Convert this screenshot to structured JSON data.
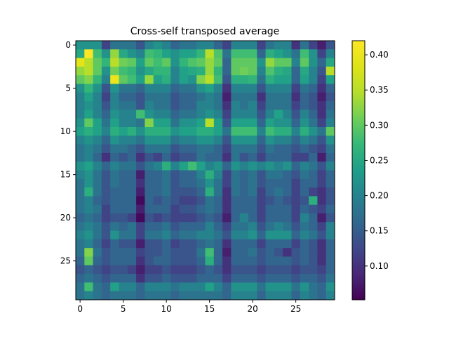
{
  "chart_data": {
    "type": "heatmap",
    "title": "Cross-self transposed average",
    "xlabel": "",
    "ylabel": "",
    "rows": 30,
    "cols": 30,
    "x_ticks": [
      0,
      5,
      10,
      15,
      20,
      25
    ],
    "y_ticks": [
      0,
      5,
      10,
      15,
      20,
      25
    ],
    "colormap": "viridis",
    "colorbar": {
      "min": 0.052,
      "max": 0.42,
      "ticks": [
        "0.10",
        "0.15",
        "0.20",
        "0.25",
        "0.30",
        "0.35",
        "0.40"
      ]
    },
    "values": [
      [
        0.22,
        0.22,
        0.22,
        0.12,
        0.18,
        0.18,
        0.18,
        0.14,
        0.2,
        0.22,
        0.2,
        0.16,
        0.18,
        0.18,
        0.2,
        0.2,
        0.16,
        0.12,
        0.2,
        0.2,
        0.2,
        0.12,
        0.18,
        0.2,
        0.2,
        0.1,
        0.18,
        0.12,
        0.08,
        0.14
      ],
      [
        0.25,
        0.42,
        0.28,
        0.22,
        0.33,
        0.25,
        0.22,
        0.2,
        0.28,
        0.27,
        0.24,
        0.22,
        0.24,
        0.24,
        0.27,
        0.35,
        0.29,
        0.18,
        0.28,
        0.28,
        0.28,
        0.16,
        0.26,
        0.24,
        0.22,
        0.18,
        0.28,
        0.22,
        0.12,
        0.2
      ],
      [
        0.39,
        0.35,
        0.3,
        0.27,
        0.35,
        0.31,
        0.3,
        0.24,
        0.3,
        0.28,
        0.3,
        0.22,
        0.27,
        0.29,
        0.3,
        0.33,
        0.3,
        0.16,
        0.3,
        0.3,
        0.3,
        0.22,
        0.33,
        0.3,
        0.3,
        0.2,
        0.3,
        0.22,
        0.16,
        0.25
      ],
      [
        0.33,
        0.35,
        0.3,
        0.22,
        0.31,
        0.28,
        0.27,
        0.22,
        0.25,
        0.27,
        0.27,
        0.2,
        0.24,
        0.25,
        0.26,
        0.33,
        0.27,
        0.16,
        0.3,
        0.31,
        0.3,
        0.2,
        0.29,
        0.26,
        0.25,
        0.16,
        0.25,
        0.2,
        0.14,
        0.35
      ],
      [
        0.3,
        0.32,
        0.27,
        0.2,
        0.4,
        0.3,
        0.28,
        0.24,
        0.33,
        0.24,
        0.26,
        0.2,
        0.24,
        0.22,
        0.32,
        0.35,
        0.28,
        0.14,
        0.26,
        0.26,
        0.27,
        0.18,
        0.26,
        0.24,
        0.24,
        0.16,
        0.24,
        0.2,
        0.12,
        0.24
      ],
      [
        0.22,
        0.27,
        0.22,
        0.14,
        0.22,
        0.18,
        0.18,
        0.16,
        0.2,
        0.2,
        0.2,
        0.16,
        0.18,
        0.18,
        0.22,
        0.24,
        0.2,
        0.1,
        0.2,
        0.2,
        0.2,
        0.14,
        0.2,
        0.2,
        0.2,
        0.12,
        0.18,
        0.16,
        0.1,
        0.16
      ],
      [
        0.2,
        0.24,
        0.2,
        0.12,
        0.2,
        0.16,
        0.16,
        0.14,
        0.18,
        0.18,
        0.18,
        0.14,
        0.16,
        0.16,
        0.18,
        0.2,
        0.18,
        0.08,
        0.18,
        0.18,
        0.18,
        0.1,
        0.18,
        0.18,
        0.18,
        0.1,
        0.16,
        0.14,
        0.08,
        0.14
      ],
      [
        0.2,
        0.22,
        0.2,
        0.14,
        0.2,
        0.18,
        0.18,
        0.14,
        0.2,
        0.18,
        0.18,
        0.14,
        0.16,
        0.16,
        0.2,
        0.2,
        0.18,
        0.1,
        0.2,
        0.18,
        0.2,
        0.12,
        0.18,
        0.18,
        0.18,
        0.12,
        0.16,
        0.14,
        0.1,
        0.16
      ],
      [
        0.2,
        0.24,
        0.2,
        0.16,
        0.22,
        0.2,
        0.2,
        0.28,
        0.22,
        0.2,
        0.2,
        0.16,
        0.18,
        0.18,
        0.2,
        0.22,
        0.2,
        0.12,
        0.2,
        0.2,
        0.2,
        0.14,
        0.2,
        0.24,
        0.2,
        0.14,
        0.2,
        0.16,
        0.1,
        0.18
      ],
      [
        0.22,
        0.3,
        0.24,
        0.18,
        0.24,
        0.2,
        0.2,
        0.18,
        0.32,
        0.24,
        0.24,
        0.18,
        0.22,
        0.22,
        0.24,
        0.35,
        0.24,
        0.14,
        0.24,
        0.24,
        0.24,
        0.16,
        0.24,
        0.22,
        0.22,
        0.16,
        0.22,
        0.18,
        0.12,
        0.2
      ],
      [
        0.24,
        0.26,
        0.24,
        0.2,
        0.26,
        0.24,
        0.26,
        0.22,
        0.26,
        0.26,
        0.26,
        0.22,
        0.24,
        0.24,
        0.26,
        0.26,
        0.24,
        0.18,
        0.28,
        0.28,
        0.28,
        0.2,
        0.28,
        0.26,
        0.26,
        0.2,
        0.26,
        0.22,
        0.18,
        0.3
      ],
      [
        0.2,
        0.22,
        0.2,
        0.16,
        0.22,
        0.2,
        0.2,
        0.18,
        0.22,
        0.22,
        0.22,
        0.18,
        0.2,
        0.2,
        0.22,
        0.22,
        0.2,
        0.14,
        0.22,
        0.22,
        0.22,
        0.16,
        0.22,
        0.2,
        0.2,
        0.16,
        0.2,
        0.18,
        0.14,
        0.22
      ],
      [
        0.18,
        0.2,
        0.18,
        0.14,
        0.18,
        0.18,
        0.16,
        0.14,
        0.18,
        0.18,
        0.18,
        0.14,
        0.16,
        0.16,
        0.18,
        0.18,
        0.16,
        0.12,
        0.18,
        0.18,
        0.18,
        0.14,
        0.18,
        0.16,
        0.16,
        0.14,
        0.16,
        0.14,
        0.12,
        0.18
      ],
      [
        0.18,
        0.2,
        0.16,
        0.1,
        0.16,
        0.14,
        0.16,
        0.1,
        0.14,
        0.12,
        0.16,
        0.12,
        0.14,
        0.14,
        0.18,
        0.16,
        0.16,
        0.1,
        0.18,
        0.14,
        0.16,
        0.12,
        0.16,
        0.16,
        0.16,
        0.12,
        0.12,
        0.16,
        0.08,
        0.16
      ],
      [
        0.22,
        0.24,
        0.2,
        0.16,
        0.2,
        0.18,
        0.18,
        0.14,
        0.18,
        0.2,
        0.26,
        0.2,
        0.24,
        0.28,
        0.24,
        0.2,
        0.22,
        0.16,
        0.22,
        0.2,
        0.22,
        0.2,
        0.22,
        0.2,
        0.22,
        0.16,
        0.2,
        0.18,
        0.14,
        0.2
      ],
      [
        0.2,
        0.22,
        0.18,
        0.14,
        0.18,
        0.16,
        0.16,
        0.08,
        0.16,
        0.16,
        0.18,
        0.14,
        0.16,
        0.16,
        0.2,
        0.26,
        0.2,
        0.12,
        0.18,
        0.16,
        0.18,
        0.14,
        0.18,
        0.18,
        0.16,
        0.14,
        0.18,
        0.16,
        0.12,
        0.16
      ],
      [
        0.18,
        0.22,
        0.18,
        0.14,
        0.18,
        0.16,
        0.16,
        0.1,
        0.16,
        0.16,
        0.18,
        0.14,
        0.16,
        0.16,
        0.18,
        0.22,
        0.18,
        0.12,
        0.18,
        0.16,
        0.18,
        0.14,
        0.16,
        0.16,
        0.16,
        0.12,
        0.16,
        0.16,
        0.12,
        0.16
      ],
      [
        0.18,
        0.26,
        0.18,
        0.14,
        0.16,
        0.16,
        0.16,
        0.08,
        0.16,
        0.16,
        0.18,
        0.14,
        0.14,
        0.14,
        0.16,
        0.26,
        0.18,
        0.1,
        0.18,
        0.16,
        0.18,
        0.12,
        0.16,
        0.18,
        0.16,
        0.12,
        0.16,
        0.12,
        0.1,
        0.14
      ],
      [
        0.18,
        0.2,
        0.16,
        0.14,
        0.16,
        0.16,
        0.16,
        0.06,
        0.16,
        0.14,
        0.16,
        0.14,
        0.12,
        0.12,
        0.14,
        0.18,
        0.16,
        0.1,
        0.16,
        0.16,
        0.16,
        0.12,
        0.14,
        0.16,
        0.14,
        0.12,
        0.14,
        0.26,
        0.1,
        0.14
      ],
      [
        0.18,
        0.2,
        0.18,
        0.12,
        0.16,
        0.16,
        0.16,
        0.08,
        0.16,
        0.16,
        0.16,
        0.12,
        0.14,
        0.14,
        0.16,
        0.18,
        0.16,
        0.1,
        0.16,
        0.16,
        0.16,
        0.12,
        0.16,
        0.16,
        0.16,
        0.12,
        0.16,
        0.14,
        0.12,
        0.16
      ],
      [
        0.16,
        0.18,
        0.16,
        0.12,
        0.14,
        0.14,
        0.12,
        0.06,
        0.14,
        0.12,
        0.14,
        0.12,
        0.12,
        0.12,
        0.14,
        0.16,
        0.14,
        0.08,
        0.16,
        0.2,
        0.16,
        0.12,
        0.16,
        0.16,
        0.16,
        0.12,
        0.2,
        0.16,
        0.08,
        0.14
      ],
      [
        0.18,
        0.2,
        0.18,
        0.14,
        0.18,
        0.16,
        0.18,
        0.12,
        0.16,
        0.16,
        0.18,
        0.14,
        0.16,
        0.16,
        0.16,
        0.2,
        0.16,
        0.12,
        0.18,
        0.18,
        0.2,
        0.14,
        0.18,
        0.2,
        0.18,
        0.14,
        0.18,
        0.16,
        0.12,
        0.2
      ],
      [
        0.2,
        0.22,
        0.18,
        0.14,
        0.22,
        0.18,
        0.18,
        0.12,
        0.18,
        0.18,
        0.2,
        0.16,
        0.18,
        0.18,
        0.2,
        0.2,
        0.18,
        0.14,
        0.2,
        0.2,
        0.22,
        0.16,
        0.22,
        0.22,
        0.22,
        0.16,
        0.2,
        0.18,
        0.14,
        0.2
      ],
      [
        0.18,
        0.2,
        0.16,
        0.12,
        0.16,
        0.14,
        0.14,
        0.08,
        0.14,
        0.14,
        0.16,
        0.12,
        0.14,
        0.14,
        0.16,
        0.18,
        0.16,
        0.1,
        0.16,
        0.16,
        0.16,
        0.12,
        0.16,
        0.16,
        0.16,
        0.12,
        0.16,
        0.14,
        0.1,
        0.16
      ],
      [
        0.18,
        0.32,
        0.18,
        0.14,
        0.16,
        0.16,
        0.16,
        0.12,
        0.14,
        0.14,
        0.16,
        0.14,
        0.14,
        0.14,
        0.18,
        0.28,
        0.16,
        0.08,
        0.16,
        0.16,
        0.18,
        0.14,
        0.16,
        0.14,
        0.1,
        0.14,
        0.16,
        0.14,
        0.1,
        0.16
      ],
      [
        0.16,
        0.3,
        0.16,
        0.14,
        0.16,
        0.16,
        0.16,
        0.1,
        0.14,
        0.16,
        0.16,
        0.14,
        0.14,
        0.14,
        0.16,
        0.26,
        0.16,
        0.1,
        0.16,
        0.16,
        0.16,
        0.14,
        0.16,
        0.16,
        0.16,
        0.14,
        0.16,
        0.14,
        0.1,
        0.16
      ],
      [
        0.14,
        0.16,
        0.14,
        0.12,
        0.14,
        0.14,
        0.12,
        0.08,
        0.12,
        0.12,
        0.14,
        0.12,
        0.12,
        0.12,
        0.14,
        0.16,
        0.14,
        0.1,
        0.14,
        0.14,
        0.14,
        0.12,
        0.14,
        0.14,
        0.14,
        0.12,
        0.14,
        0.14,
        0.12,
        0.16
      ],
      [
        0.16,
        0.18,
        0.16,
        0.14,
        0.16,
        0.16,
        0.16,
        0.1,
        0.14,
        0.14,
        0.16,
        0.14,
        0.14,
        0.14,
        0.16,
        0.16,
        0.16,
        0.12,
        0.16,
        0.16,
        0.16,
        0.14,
        0.16,
        0.16,
        0.16,
        0.14,
        0.16,
        0.16,
        0.14,
        0.18
      ],
      [
        0.18,
        0.28,
        0.18,
        0.16,
        0.24,
        0.2,
        0.2,
        0.16,
        0.2,
        0.2,
        0.2,
        0.18,
        0.2,
        0.2,
        0.2,
        0.24,
        0.2,
        0.16,
        0.22,
        0.22,
        0.22,
        0.18,
        0.22,
        0.22,
        0.22,
        0.18,
        0.22,
        0.18,
        0.16,
        0.22
      ],
      [
        0.18,
        0.2,
        0.18,
        0.16,
        0.18,
        0.18,
        0.18,
        0.16,
        0.18,
        0.18,
        0.18,
        0.16,
        0.18,
        0.18,
        0.18,
        0.18,
        0.18,
        0.16,
        0.2,
        0.2,
        0.2,
        0.16,
        0.2,
        0.2,
        0.2,
        0.16,
        0.2,
        0.18,
        0.16,
        0.2
      ]
    ]
  }
}
